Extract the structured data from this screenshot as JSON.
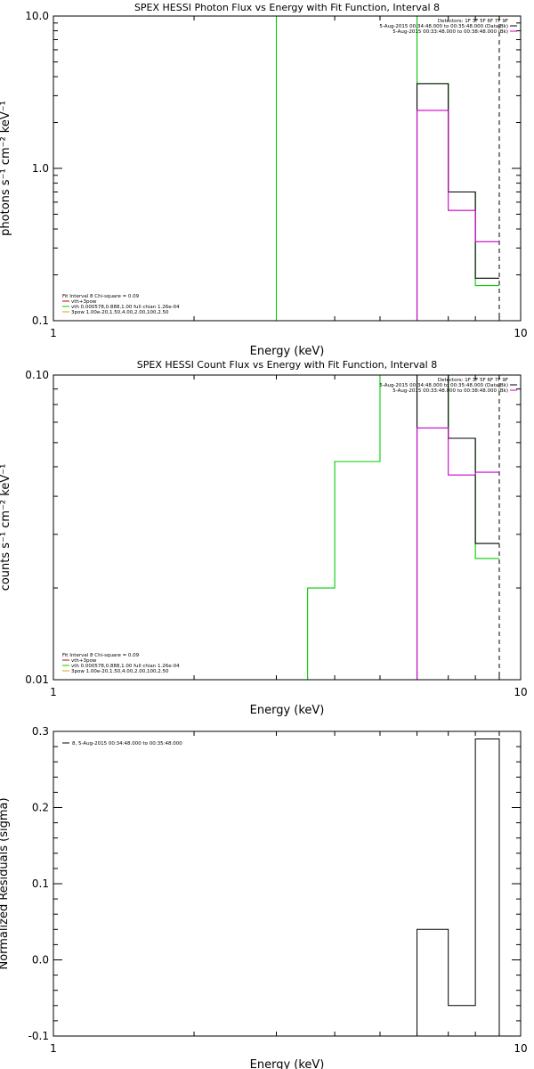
{
  "chart_data": [
    {
      "type": "line",
      "title": "SPEX HESSI Photon Flux vs Energy with Fit Function, Interval 8",
      "xlabel": "Energy (keV)",
      "ylabel": "photons s⁻¹ cm⁻² keV⁻¹",
      "xscale": "log",
      "yscale": "log",
      "xlim": [
        1,
        10
      ],
      "ylim": [
        0.1,
        10
      ],
      "xticks": [
        {
          "v": 1,
          "label": "1"
        },
        {
          "v": 10,
          "label": "10"
        }
      ],
      "yticks": [
        {
          "v": 0.1,
          "label": "0.1"
        },
        {
          "v": 1,
          "label": "1.0"
        },
        {
          "v": 10,
          "label": "10.0"
        }
      ],
      "legend_topright": [
        {
          "text": "Detectors: 1F 3F 5F 6F 7F 9F",
          "color": ""
        },
        {
          "text": "5-Aug-2015 00:34:48.000 to 00:35:48.000 (Data-Bk)",
          "color": "#000000"
        },
        {
          "text": "5-Aug-2015 00:33:48.000 to 00:38:48.000 (Bk)",
          "color": "#cc00cc"
        }
      ],
      "legend_bottomleft": [
        {
          "text": "Fit Interval 8   Chi-square = 0.09",
          "color": ""
        },
        {
          "text": "vth+3pow",
          "color": "#cc0000"
        },
        {
          "text": "vth 0.000578,0.888,1.00  full chian 1.26e-04",
          "color": "#00cc00"
        },
        {
          "text": "3pow 1.00e-20,1.50,4.00,2.00,100,2.50",
          "color": "#d8a000"
        }
      ],
      "vlines": [
        {
          "x": 6,
          "color": "#cc00cc"
        },
        {
          "x": 9,
          "color": "#000000"
        }
      ],
      "series": [
        {
          "key": "fit",
          "color": "#00cc00",
          "edges": [
            3,
            3.5,
            4,
            5,
            6,
            7,
            8,
            9
          ],
          "values": [
            10,
            10,
            10,
            10,
            3.6,
            0.7,
            0.17
          ]
        },
        {
          "key": "data",
          "color": "#000000",
          "edges": [
            6,
            7,
            8,
            9
          ],
          "values": [
            3.6,
            0.7,
            0.19
          ]
        },
        {
          "key": "bk",
          "color": "#cc00cc",
          "edges": [
            6,
            7,
            8,
            9
          ],
          "values": [
            2.4,
            0.53,
            0.33
          ]
        }
      ]
    },
    {
      "type": "line",
      "title": "SPEX HESSI Count Flux vs Energy with Fit Function, Interval 8",
      "xlabel": "Energy (keV)",
      "ylabel": "counts s⁻¹ cm⁻² keV⁻¹",
      "xscale": "log",
      "yscale": "log",
      "xlim": [
        1,
        10
      ],
      "ylim": [
        0.01,
        0.1
      ],
      "xticks": [
        {
          "v": 1,
          "label": "1"
        },
        {
          "v": 10,
          "label": "10"
        }
      ],
      "yticks": [
        {
          "v": 0.01,
          "label": "0.01"
        },
        {
          "v": 0.1,
          "label": "0.10"
        }
      ],
      "legend_topright": [
        {
          "text": "Detectors: 1F 3F 5F 6F 7F 9F",
          "color": ""
        },
        {
          "text": "5-Aug-2015 00:34:48.000 to 00:35:48.000 (Data-Bk)",
          "color": "#000000"
        },
        {
          "text": "5-Aug-2015 00:33:48.000 to 00:38:48.000 (Bk)",
          "color": "#cc00cc"
        }
      ],
      "legend_bottomleft": [
        {
          "text": "Fit Interval 8   Chi-square = 0.09",
          "color": ""
        },
        {
          "text": "vth+3pow",
          "color": "#cc0000"
        },
        {
          "text": "vth 0.000578,0.888,1.00  full chian 1.26e-04",
          "color": "#00cc00"
        },
        {
          "text": "3pow 1.00e-20,1.50,4.00,2.00,100,2.50",
          "color": "#d8a000"
        }
      ],
      "vlines": [
        {
          "x": 6,
          "color": "#cc00cc"
        },
        {
          "x": 9,
          "color": "#000000"
        }
      ],
      "series": [
        {
          "key": "fit",
          "color": "#00cc00",
          "edges": [
            3,
            3.5,
            4,
            5,
            6,
            7,
            8,
            9
          ],
          "values": [
            0.01,
            0.02,
            0.052,
            0.1,
            0.1,
            0.062,
            0.025
          ]
        },
        {
          "key": "data",
          "color": "#000000",
          "edges": [
            6,
            7,
            8,
            9
          ],
          "values": [
            0.1,
            0.062,
            0.028
          ]
        },
        {
          "key": "bk",
          "color": "#cc00cc",
          "edges": [
            6,
            7,
            8,
            9
          ],
          "values": [
            0.067,
            0.047,
            0.048
          ]
        }
      ]
    },
    {
      "type": "line",
      "title": "",
      "xlabel": "Energy (keV)",
      "ylabel": "Normalized Residuals (sigma)",
      "xscale": "log",
      "yscale": "linear",
      "xlim": [
        1,
        10
      ],
      "ylim": [
        -0.1,
        0.3
      ],
      "xticks": [
        {
          "v": 1,
          "label": "1"
        },
        {
          "v": 10,
          "label": "10"
        }
      ],
      "yticks": [
        {
          "v": -0.1,
          "label": "-0.1"
        },
        {
          "v": 0,
          "label": "0.0"
        },
        {
          "v": 0.1,
          "label": "0.1"
        },
        {
          "v": 0.2,
          "label": "0.2"
        },
        {
          "v": 0.3,
          "label": "0.3"
        }
      ],
      "legend_topleft": [
        {
          "text": "8,  5-Aug-2015 00:34:48.000 to 00:35:48.000",
          "color": "#000000"
        }
      ],
      "vlines": [],
      "series": [
        {
          "key": "resid",
          "color": "#000000",
          "edges": [
            6,
            7,
            8,
            9
          ],
          "values": [
            0.04,
            -0.06,
            0.29
          ],
          "baseline": -0.1
        }
      ]
    }
  ]
}
